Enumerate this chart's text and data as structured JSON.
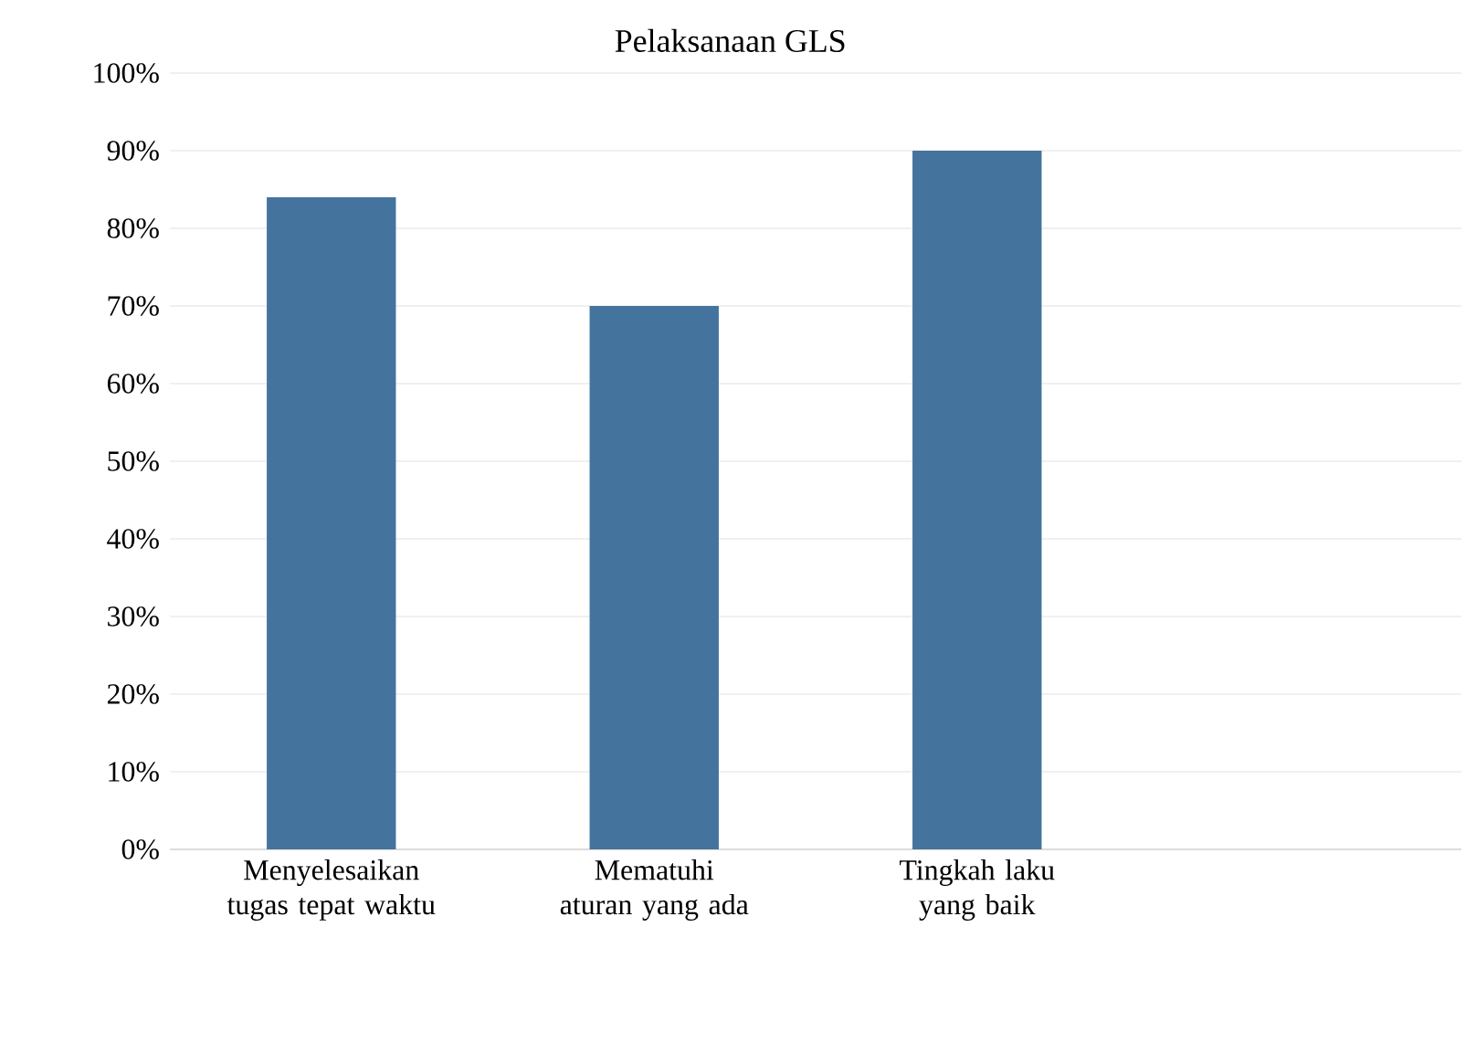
{
  "chart_data": {
    "type": "bar",
    "title": "Pelaksanaan GLS",
    "categories": [
      "Menyelesaikan tugas tepat waktu",
      "Mematuhi aturan yang ada",
      "Tingkah laku yang baik",
      null
    ],
    "values": [
      84,
      70,
      90,
      null
    ],
    "color": "#44739e",
    "ylim": [
      0,
      100
    ],
    "yticks": [
      {
        "value": 0,
        "label": "0%"
      },
      {
        "value": 10,
        "label": "10%"
      },
      {
        "value": 20,
        "label": "20%"
      },
      {
        "value": 30,
        "label": "30%"
      },
      {
        "value": 40,
        "label": "40%"
      },
      {
        "value": 50,
        "label": "50%"
      },
      {
        "value": 60,
        "label": "60%"
      },
      {
        "value": 70,
        "label": "70%"
      },
      {
        "value": 80,
        "label": "80%"
      },
      {
        "value": 90,
        "label": "90%"
      },
      {
        "value": 100,
        "label": "100%"
      }
    ],
    "grid": "y"
  }
}
